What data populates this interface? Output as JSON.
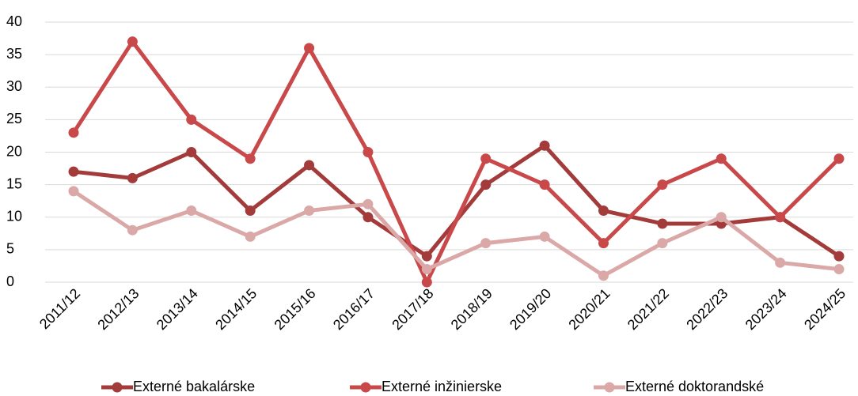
{
  "chart_data": {
    "type": "line",
    "categories": [
      "2011/12",
      "2012/13",
      "2013/14",
      "2014/15",
      "2015/16",
      "2016/17",
      "2017/18",
      "2018/19",
      "2019/20",
      "2020/21",
      "2021/22",
      "2022/23",
      "2023/24",
      "2024/25"
    ],
    "series": [
      {
        "name": "Externé bakalárske",
        "color": "#a33b3b",
        "values": [
          17,
          16,
          20,
          11,
          18,
          10,
          4,
          15,
          21,
          11,
          9,
          9,
          10,
          4
        ]
      },
      {
        "name": "Externé inžinierske",
        "color": "#c9484a",
        "values": [
          23,
          37,
          25,
          19,
          36,
          20,
          0,
          19,
          15,
          6,
          15,
          19,
          10,
          19
        ]
      },
      {
        "name": "Externé doktorandské",
        "color": "#dba8a8",
        "values": [
          14,
          8,
          11,
          7,
          11,
          12,
          2,
          6,
          7,
          1,
          6,
          10,
          3,
          2
        ]
      }
    ],
    "ylim": [
      0,
      40
    ],
    "yticks": [
      0,
      5,
      10,
      15,
      20,
      25,
      30,
      35,
      40
    ],
    "grid": true,
    "legend": "bottom"
  }
}
